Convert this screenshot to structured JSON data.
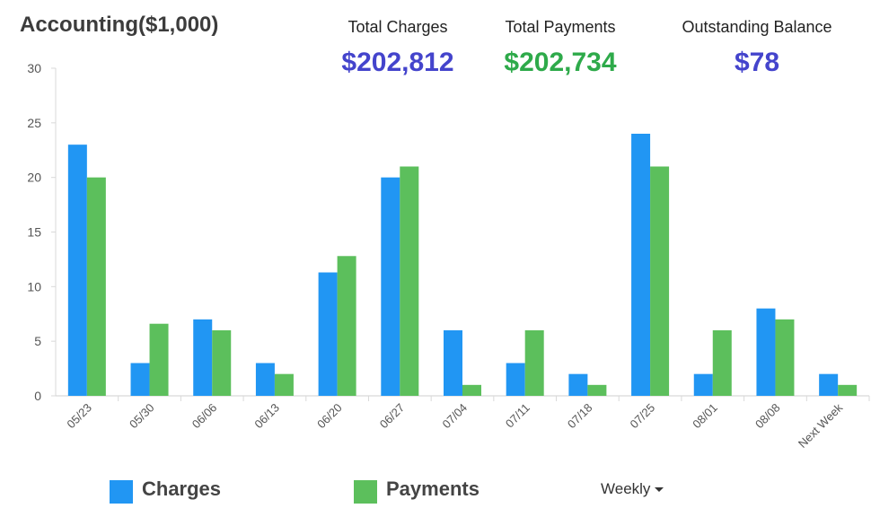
{
  "header": {
    "title": "Accounting($1,000)",
    "total_charges_label": "Total Charges",
    "total_charges_value": "$202,812",
    "total_payments_label": "Total Payments",
    "total_payments_value": "$202,734",
    "outstanding_label": "Outstanding Balance",
    "outstanding_value": "$78"
  },
  "colors": {
    "charges": "#2196f3",
    "payments": "#5cbf5c",
    "charges_value_text": "#4444cc",
    "payments_value_text": "#2eaa4a",
    "balance_value_text": "#4444cc"
  },
  "period_dropdown": {
    "selected": "Weekly"
  },
  "chart_data": {
    "type": "bar",
    "title": "Accounting($1,000)",
    "categories": [
      "05/23",
      "05/30",
      "06/06",
      "06/13",
      "06/20",
      "06/27",
      "07/04",
      "07/11",
      "07/18",
      "07/25",
      "08/01",
      "08/08",
      "Next Week"
    ],
    "series": [
      {
        "name": "Charges",
        "values": [
          23,
          3,
          7,
          3,
          11.3,
          20,
          6,
          3,
          2,
          24,
          2,
          8,
          2
        ]
      },
      {
        "name": "Payments",
        "values": [
          20,
          6.6,
          6,
          2,
          12.8,
          21,
          1,
          6,
          1,
          21,
          6,
          7,
          1
        ]
      }
    ],
    "ylim": [
      0,
      30
    ],
    "yticks": [
      0,
      5,
      10,
      15,
      20,
      25,
      30
    ],
    "grid": false,
    "legend_position": "bottom-left"
  }
}
